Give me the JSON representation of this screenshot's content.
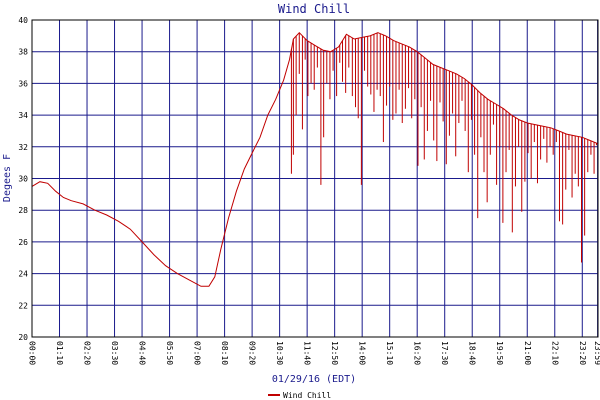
{
  "chart_data": {
    "type": "line",
    "title": "Wind Chill",
    "ylabel": "Degees F",
    "xlabel": "01/29/16 (EDT)",
    "ylim": [
      20,
      40
    ],
    "yticks": [
      "20",
      "22",
      "24",
      "26",
      "28",
      "30",
      "32",
      "34",
      "36",
      "38",
      "40"
    ],
    "xlim": [
      0,
      1440
    ],
    "xticks": [
      {
        "t": 0,
        "label": "00:00"
      },
      {
        "t": 70,
        "label": "01:10"
      },
      {
        "t": 140,
        "label": "02:20"
      },
      {
        "t": 210,
        "label": "03:30"
      },
      {
        "t": 280,
        "label": "04:40"
      },
      {
        "t": 350,
        "label": "05:50"
      },
      {
        "t": 420,
        "label": "07:00"
      },
      {
        "t": 490,
        "label": "08:10"
      },
      {
        "t": 560,
        "label": "09:20"
      },
      {
        "t": 630,
        "label": "10:30"
      },
      {
        "t": 700,
        "label": "11:40"
      },
      {
        "t": 770,
        "label": "12:50"
      },
      {
        "t": 840,
        "label": "14:00"
      },
      {
        "t": 910,
        "label": "15:10"
      },
      {
        "t": 980,
        "label": "16:20"
      },
      {
        "t": 1050,
        "label": "17:30"
      },
      {
        "t": 1120,
        "label": "18:40"
      },
      {
        "t": 1190,
        "label": "19:50"
      },
      {
        "t": 1260,
        "label": "21:00"
      },
      {
        "t": 1330,
        "label": "22:10"
      },
      {
        "t": 1400,
        "label": "23:20"
      },
      {
        "t": 1439,
        "label": "23:59"
      }
    ],
    "grid": true,
    "legend_position": "bottom-center",
    "colors": {
      "line": "#c00000",
      "grid": "#1a1a8c",
      "frame": "#000000",
      "title": "#1a1a8c"
    },
    "series": [
      {
        "name": "Wind Chill",
        "envelope": [
          [
            0,
            29.5
          ],
          [
            20,
            29.8
          ],
          [
            40,
            29.7
          ],
          [
            60,
            29.2
          ],
          [
            80,
            28.8
          ],
          [
            100,
            28.6
          ],
          [
            130,
            28.4
          ],
          [
            160,
            28.0
          ],
          [
            190,
            27.7
          ],
          [
            220,
            27.3
          ],
          [
            250,
            26.8
          ],
          [
            280,
            26.0
          ],
          [
            310,
            25.2
          ],
          [
            340,
            24.5
          ],
          [
            370,
            24.0
          ],
          [
            400,
            23.6
          ],
          [
            430,
            23.2
          ],
          [
            450,
            23.2
          ],
          [
            465,
            23.8
          ],
          [
            480,
            25.5
          ],
          [
            500,
            27.5
          ],
          [
            520,
            29.2
          ],
          [
            540,
            30.6
          ],
          [
            560,
            31.6
          ],
          [
            580,
            32.6
          ],
          [
            600,
            34.0
          ],
          [
            620,
            35.0
          ],
          [
            640,
            36.2
          ],
          [
            655,
            37.5
          ],
          [
            665,
            38.8
          ],
          [
            680,
            39.2
          ],
          [
            700,
            38.7
          ],
          [
            720,
            38.4
          ],
          [
            740,
            38.1
          ],
          [
            760,
            38.0
          ],
          [
            780,
            38.3
          ],
          [
            800,
            39.1
          ],
          [
            820,
            38.8
          ],
          [
            840,
            38.9
          ],
          [
            860,
            39.0
          ],
          [
            880,
            39.2
          ],
          [
            900,
            39.0
          ],
          [
            920,
            38.7
          ],
          [
            940,
            38.5
          ],
          [
            960,
            38.3
          ],
          [
            980,
            38.0
          ],
          [
            1000,
            37.6
          ],
          [
            1020,
            37.2
          ],
          [
            1040,
            37.0
          ],
          [
            1060,
            36.8
          ],
          [
            1080,
            36.6
          ],
          [
            1100,
            36.3
          ],
          [
            1120,
            35.9
          ],
          [
            1140,
            35.4
          ],
          [
            1160,
            35.0
          ],
          [
            1180,
            34.7
          ],
          [
            1200,
            34.4
          ],
          [
            1220,
            34.0
          ],
          [
            1240,
            33.7
          ],
          [
            1260,
            33.5
          ],
          [
            1280,
            33.4
          ],
          [
            1300,
            33.3
          ],
          [
            1320,
            33.2
          ],
          [
            1340,
            33.0
          ],
          [
            1360,
            32.8
          ],
          [
            1380,
            32.7
          ],
          [
            1400,
            32.6
          ],
          [
            1420,
            32.4
          ],
          [
            1439,
            32.2
          ]
        ],
        "drops": [
          [
            660,
            30.3
          ],
          [
            665,
            31.5
          ],
          [
            672,
            34.0
          ],
          [
            680,
            36.6
          ],
          [
            688,
            33.1
          ],
          [
            695,
            37.5
          ],
          [
            702,
            35.2
          ],
          [
            710,
            36.0
          ],
          [
            718,
            35.6
          ],
          [
            726,
            37.0
          ],
          [
            735,
            29.6
          ],
          [
            742,
            32.6
          ],
          [
            750,
            36.0
          ],
          [
            758,
            35.0
          ],
          [
            766,
            36.8
          ],
          [
            775,
            35.2
          ],
          [
            783,
            37.3
          ],
          [
            790,
            36.1
          ],
          [
            798,
            35.4
          ],
          [
            806,
            37.0
          ],
          [
            815,
            35.2
          ],
          [
            823,
            34.5
          ],
          [
            830,
            33.8
          ],
          [
            838,
            29.6
          ],
          [
            846,
            36.8
          ],
          [
            854,
            35.8
          ],
          [
            862,
            35.3
          ],
          [
            870,
            34.2
          ],
          [
            878,
            35.6
          ],
          [
            886,
            35.2
          ],
          [
            894,
            32.3
          ],
          [
            902,
            34.6
          ],
          [
            910,
            35.8
          ],
          [
            918,
            33.7
          ],
          [
            926,
            34.1
          ],
          [
            934,
            35.6
          ],
          [
            942,
            33.5
          ],
          [
            950,
            34.4
          ],
          [
            958,
            35.7
          ],
          [
            966,
            33.8
          ],
          [
            974,
            35.0
          ],
          [
            982,
            30.8
          ],
          [
            990,
            34.5
          ],
          [
            998,
            31.2
          ],
          [
            1006,
            33.0
          ],
          [
            1014,
            34.9
          ],
          [
            1022,
            32.4
          ],
          [
            1030,
            31.1
          ],
          [
            1038,
            34.8
          ],
          [
            1046,
            33.6
          ],
          [
            1054,
            30.9
          ],
          [
            1062,
            32.7
          ],
          [
            1070,
            34.1
          ],
          [
            1078,
            31.4
          ],
          [
            1086,
            33.5
          ],
          [
            1094,
            34.9
          ],
          [
            1102,
            33.0
          ],
          [
            1110,
            30.4
          ],
          [
            1118,
            33.7
          ],
          [
            1126,
            31.5
          ],
          [
            1134,
            27.5
          ],
          [
            1142,
            32.6
          ],
          [
            1150,
            30.4
          ],
          [
            1158,
            28.5
          ],
          [
            1166,
            31.5
          ],
          [
            1174,
            33.4
          ],
          [
            1182,
            29.6
          ],
          [
            1190,
            32.0
          ],
          [
            1198,
            27.2
          ],
          [
            1206,
            30.4
          ],
          [
            1214,
            31.8
          ],
          [
            1222,
            26.6
          ],
          [
            1230,
            29.5
          ],
          [
            1238,
            32.0
          ],
          [
            1246,
            27.9
          ],
          [
            1254,
            29.8
          ],
          [
            1262,
            31.6
          ],
          [
            1270,
            30.0
          ],
          [
            1278,
            32.3
          ],
          [
            1286,
            29.7
          ],
          [
            1294,
            31.2
          ],
          [
            1302,
            32.5
          ],
          [
            1310,
            31.0
          ],
          [
            1318,
            32.0
          ],
          [
            1326,
            31.5
          ],
          [
            1334,
            32.3
          ],
          [
            1342,
            27.3
          ],
          [
            1350,
            27.1
          ],
          [
            1358,
            29.3
          ],
          [
            1366,
            31.8
          ],
          [
            1374,
            28.8
          ],
          [
            1382,
            30.3
          ],
          [
            1390,
            29.5
          ],
          [
            1398,
            24.7
          ],
          [
            1406,
            26.4
          ],
          [
            1414,
            30.4
          ],
          [
            1422,
            31.5
          ],
          [
            1430,
            30.3
          ],
          [
            1436,
            32.1
          ]
        ]
      }
    ]
  }
}
